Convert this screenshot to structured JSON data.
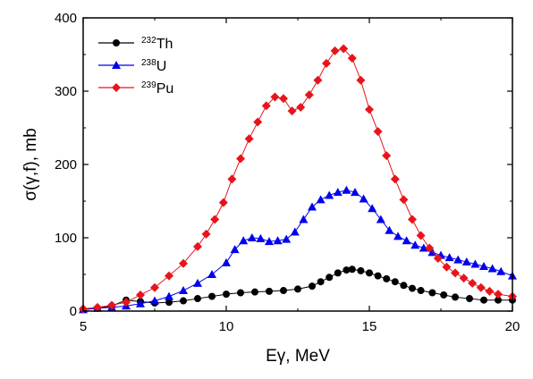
{
  "chart_data": {
    "type": "scatter",
    "title": "",
    "xlabel": "Eγ, MeV",
    "ylabel": "σ(γ,f), mb",
    "xlim": [
      5,
      20
    ],
    "ylim": [
      0,
      400
    ],
    "xticks": [
      5,
      10,
      15,
      20
    ],
    "yticks": [
      0,
      100,
      200,
      300,
      400
    ],
    "grid": false,
    "legend": "top-left",
    "series": [
      {
        "name": "Th",
        "sup": "232",
        "color": "#000000",
        "marker": "circle",
        "x": [
          5.0,
          5.5,
          6.0,
          6.5,
          7.0,
          7.5,
          8.0,
          8.5,
          9.0,
          9.5,
          10.0,
          10.5,
          11.0,
          11.5,
          12.0,
          12.5,
          13.0,
          13.3,
          13.6,
          13.9,
          14.2,
          14.4,
          14.7,
          15.0,
          15.3,
          15.6,
          15.9,
          16.2,
          16.5,
          16.8,
          17.2,
          17.6,
          18.0,
          18.5,
          19.0,
          19.5,
          20.0
        ],
        "y": [
          2,
          4,
          7,
          15,
          13,
          11,
          12,
          14,
          17,
          20,
          23,
          25,
          26,
          27,
          28,
          30,
          34,
          40,
          46,
          52,
          56,
          57,
          55,
          52,
          48,
          44,
          40,
          35,
          31,
          28,
          25,
          22,
          19,
          17,
          15,
          15,
          15
        ]
      },
      {
        "name": "U",
        "sup": "238",
        "color": "#0000ee",
        "marker": "triangle",
        "x": [
          5.0,
          5.5,
          6.0,
          6.5,
          7.0,
          7.5,
          8.0,
          8.5,
          9.0,
          9.5,
          10.0,
          10.3,
          10.6,
          10.9,
          11.2,
          11.5,
          11.8,
          12.1,
          12.4,
          12.7,
          13.0,
          13.3,
          13.6,
          13.9,
          14.2,
          14.5,
          14.8,
          15.1,
          15.4,
          15.7,
          16.0,
          16.3,
          16.6,
          16.9,
          17.2,
          17.5,
          17.8,
          18.1,
          18.4,
          18.7,
          19.0,
          19.3,
          19.6,
          20.0
        ],
        "y": [
          2,
          4,
          5,
          7,
          10,
          14,
          20,
          28,
          38,
          50,
          66,
          84,
          96,
          100,
          99,
          95,
          96,
          98,
          108,
          125,
          142,
          152,
          158,
          162,
          165,
          162,
          153,
          140,
          125,
          110,
          102,
          96,
          90,
          86,
          80,
          76,
          73,
          70,
          67,
          64,
          61,
          58,
          54,
          48
        ]
      },
      {
        "name": "Pu",
        "sup": "239",
        "color": "#e8141c",
        "marker": "diamond",
        "x": [
          5.0,
          5.5,
          6.0,
          6.5,
          7.0,
          7.5,
          8.0,
          8.5,
          9.0,
          9.3,
          9.6,
          9.9,
          10.2,
          10.5,
          10.8,
          11.1,
          11.4,
          11.7,
          12.0,
          12.3,
          12.6,
          12.9,
          13.2,
          13.5,
          13.8,
          14.1,
          14.4,
          14.7,
          15.0,
          15.3,
          15.6,
          15.9,
          16.2,
          16.5,
          16.8,
          17.1,
          17.4,
          17.7,
          18.0,
          18.3,
          18.6,
          18.9,
          19.2,
          19.5,
          20.0
        ],
        "y": [
          3,
          5,
          8,
          12,
          22,
          32,
          48,
          65,
          88,
          105,
          125,
          148,
          180,
          208,
          235,
          258,
          280,
          292,
          290,
          273,
          278,
          295,
          315,
          338,
          355,
          358,
          345,
          315,
          275,
          245,
          212,
          180,
          152,
          125,
          103,
          86,
          72,
          60,
          52,
          45,
          38,
          32,
          27,
          23,
          20
        ]
      }
    ]
  }
}
